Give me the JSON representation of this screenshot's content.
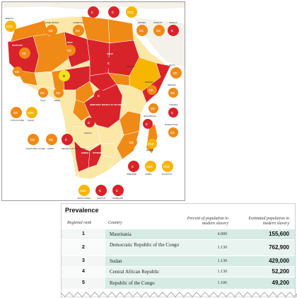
{
  "colors": {
    "map_ccc": "#f7b500",
    "map_cc": "#f08a16",
    "map_c": "#d8232a",
    "map_b": "#f2e21a",
    "legend_light": "#fbe7a6",
    "table_row_alt": "#dfeee9",
    "table_row_base": "#eef6f3"
  },
  "map": {
    "country_labels": {
      "senegal": "Senegal",
      "guinea_bissau": "Guinea-Bissau",
      "cameroon": "Cameroon",
      "eritrea": "Eritrea",
      "djibouti": "Djibouti",
      "somalia": "Somalia",
      "mauritania": "Mauritania",
      "niger": "Niger",
      "sudan": "Sudan",
      "ethiopia": "Ethiopia",
      "kenya": "Kenya",
      "rwanda": "Rwanda",
      "drc": "Democratic Republic of the Congo",
      "burundi": "Burundi",
      "tanzania": "Tanzania",
      "mozambique": "Mozambique",
      "madagascar": "Madagascar",
      "malawi": "Malawi",
      "zimbabwe": "Zimbabwe",
      "zambia": "Zambia",
      "mauritius": "Mauritius",
      "angola": "Angola",
      "namibia": "Namibia",
      "botswana": "Botswana",
      "togo": "Togo",
      "benin": "Benin",
      "cote_divoire": "Cote d'Ivoire",
      "ghana": "Ghana",
      "equatorial_guinea": "Equatorial Guinea",
      "gabon": "Gabon",
      "republic_congo": "Republic of the Congo",
      "south_africa": "South Africa",
      "lesotho": "Lesotho",
      "swaziland": "Swaziland"
    },
    "ratings": [
      "C",
      "CC",
      "CCC",
      "B"
    ]
  },
  "table": {
    "title": "Prevalence",
    "headers": {
      "rank": "Regional rank",
      "country": "Country",
      "percent": "Percent of population in modern slavery",
      "estimated": "Estimated population in modern slavery"
    },
    "rows": [
      {
        "rank": "1",
        "country": "Mauritania",
        "percent": "4.000",
        "estimated": "155,600"
      },
      {
        "rank": "2",
        "country": "Democratic Republic of the Congo",
        "percent": "1.130",
        "estimated": "762,900"
      },
      {
        "rank": "3",
        "country": "Sudan",
        "percent": "1.130",
        "estimated": "429,000"
      },
      {
        "rank": "4",
        "country": "Central African Republic",
        "percent": "1.130",
        "estimated": "52,200"
      },
      {
        "rank": "5",
        "country": "Republic of the Congo",
        "percent": "1.106",
        "estimated": "49,200"
      }
    ]
  }
}
